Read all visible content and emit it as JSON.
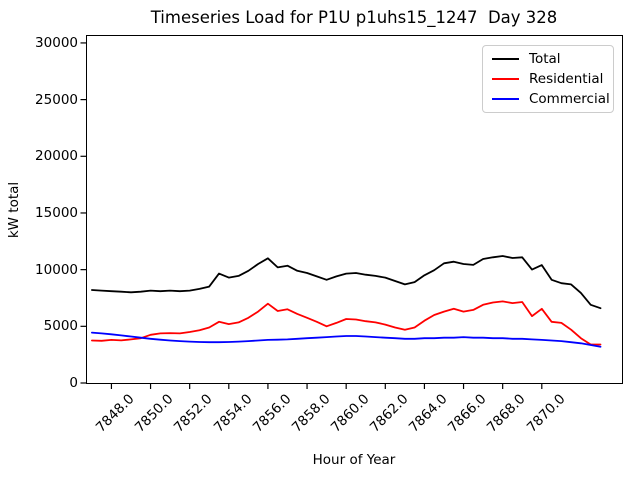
{
  "figure": {
    "title": "Timeseries Load for P1U p1uhs15_1247  Day 328",
    "xlabel": "Hour of Year",
    "ylabel": "kW total",
    "background_color": "#ffffff",
    "spine_color": "#000000"
  },
  "legend": {
    "position": "upper right",
    "items": [
      {
        "label": "Total",
        "color": "#000000"
      },
      {
        "label": "Residential",
        "color": "#ff0000"
      },
      {
        "label": "Commercial",
        "color": "#0000ff"
      }
    ]
  },
  "chart_data": {
    "type": "line",
    "title": "Timeseries Load for P1U p1uhs15_1247  Day 328",
    "xlabel": "Hour of Year",
    "ylabel": "kW total",
    "xlim": [
      7846.7,
      7874.1
    ],
    "ylim": [
      0,
      30700
    ],
    "grid": false,
    "legend_position": "upper right",
    "xticks": [
      7848,
      7850,
      7852,
      7854,
      7856,
      7858,
      7860,
      7862,
      7864,
      7866,
      7868,
      7870
    ],
    "xtick_labels": [
      "7848.0",
      "7850.0",
      "7852.0",
      "7854.0",
      "7856.0",
      "7858.0",
      "7860.0",
      "7862.0",
      "7864.0",
      "7866.0",
      "7868.0",
      "7870.0"
    ],
    "yticks": [
      0,
      5000,
      10000,
      15000,
      20000,
      25000,
      30000
    ],
    "ytick_labels": [
      "0",
      "5000",
      "10000",
      "15000",
      "20000",
      "25000",
      "30000"
    ],
    "x": [
      7847.0,
      7847.5,
      7848.0,
      7848.5,
      7849.0,
      7849.5,
      7850.0,
      7850.5,
      7851.0,
      7851.5,
      7852.0,
      7852.5,
      7853.0,
      7853.5,
      7854.0,
      7854.5,
      7855.0,
      7855.5,
      7856.0,
      7856.5,
      7857.0,
      7857.5,
      7858.0,
      7858.5,
      7859.0,
      7859.5,
      7860.0,
      7860.5,
      7861.0,
      7861.5,
      7862.0,
      7862.5,
      7863.0,
      7863.5,
      7864.0,
      7864.5,
      7865.0,
      7865.5,
      7866.0,
      7866.5,
      7867.0,
      7867.5,
      7868.0,
      7868.5,
      7869.0,
      7869.5,
      7870.0,
      7870.5,
      7871.0,
      7871.5,
      7872.0,
      7872.5,
      7873.0
    ],
    "series": [
      {
        "name": "Total",
        "color": "#000000",
        "values": [
          8200,
          8150,
          8100,
          8050,
          8000,
          8050,
          8150,
          8100,
          8150,
          8100,
          8150,
          8300,
          8500,
          9650,
          9300,
          9450,
          9900,
          10500,
          11000,
          10200,
          10350,
          9900,
          9700,
          9400,
          9100,
          9400,
          9650,
          9700,
          9550,
          9450,
          9300,
          9000,
          8700,
          8900,
          9500,
          9950,
          10560,
          10700,
          10500,
          10420,
          10940,
          11090,
          11200,
          11030,
          11090,
          10000,
          10400,
          9100,
          8800,
          8700,
          7950,
          6900,
          6600
        ]
      },
      {
        "name": "Residential",
        "color": "#ff0000",
        "values": [
          3750,
          3720,
          3800,
          3760,
          3850,
          3950,
          4250,
          4380,
          4400,
          4380,
          4500,
          4650,
          4900,
          5400,
          5200,
          5350,
          5750,
          6300,
          7000,
          6350,
          6500,
          6100,
          5750,
          5400,
          5000,
          5300,
          5650,
          5600,
          5450,
          5350,
          5150,
          4900,
          4700,
          4900,
          5500,
          6000,
          6300,
          6550,
          6300,
          6450,
          6900,
          7100,
          7200,
          7050,
          7150,
          5900,
          6550,
          5400,
          5300,
          4700,
          3950,
          3400,
          3400
        ]
      },
      {
        "name": "Commercial",
        "color": "#0000ff",
        "values": [
          4450,
          4380,
          4300,
          4200,
          4100,
          4000,
          3900,
          3820,
          3750,
          3700,
          3650,
          3620,
          3600,
          3600,
          3620,
          3650,
          3700,
          3750,
          3800,
          3820,
          3850,
          3900,
          3950,
          4000,
          4050,
          4100,
          4150,
          4150,
          4100,
          4050,
          4000,
          3950,
          3900,
          3900,
          3950,
          3950,
          4000,
          4000,
          4050,
          4000,
          4000,
          3950,
          3950,
          3900,
          3900,
          3850,
          3800,
          3750,
          3700,
          3600,
          3500,
          3350,
          3200
        ]
      }
    ]
  }
}
